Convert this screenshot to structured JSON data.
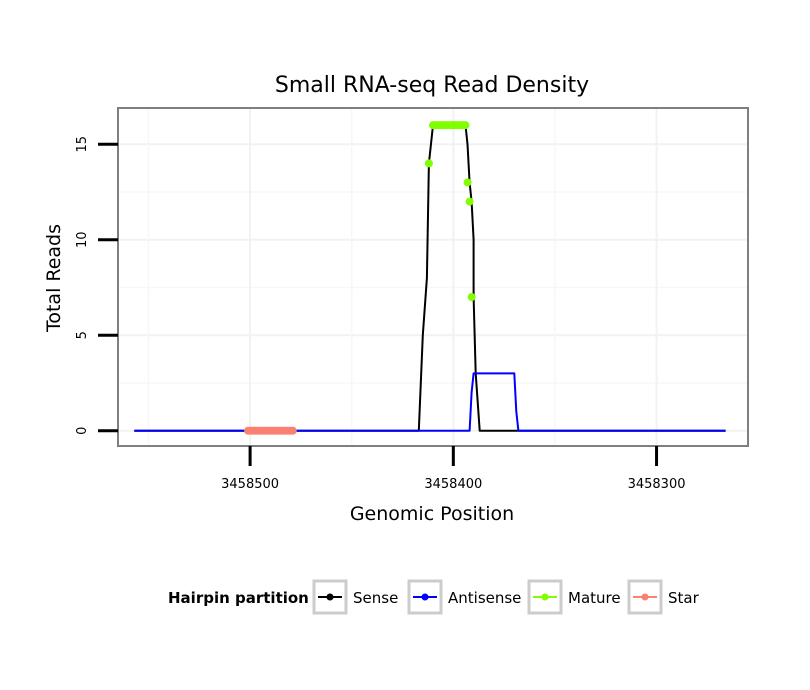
{
  "chart_data": {
    "type": "line",
    "title": "Small RNA-seq Read Density",
    "xlabel": "Genomic Position",
    "ylabel": "Total Reads",
    "x_reversed": true,
    "xlim": [
      3458565,
      3458255
    ],
    "ylim": [
      -0.8,
      16.9
    ],
    "x_ticks": [
      3458500,
      3458400,
      3458300
    ],
    "x_tick_labels": [
      "3458500",
      "3458400",
      "3458300"
    ],
    "y_ticks": [
      0,
      5,
      10,
      15
    ],
    "y_tick_labels": [
      "0",
      "5",
      "10",
      "15"
    ],
    "grid": true,
    "legend": {
      "title": "Hairpin partition",
      "position": "bottom",
      "entries": [
        "Sense",
        "Antisense",
        "Mature",
        "Star"
      ]
    },
    "series": [
      {
        "name": "Sense",
        "color": "#000000",
        "style": "line",
        "x": [
          3458557,
          3458417,
          3458415,
          3458413,
          3458412,
          3458410,
          3458408,
          3458395,
          3458394,
          3458393,
          3458392,
          3458391,
          3458390,
          3458390,
          3458389,
          3458387,
          3458266
        ],
        "y": [
          0,
          0,
          5,
          8,
          14,
          16,
          16,
          16,
          16,
          15,
          13,
          12,
          10,
          7,
          3,
          0,
          0
        ]
      },
      {
        "name": "Antisense",
        "color": "#0000ff",
        "style": "line",
        "x": [
          3458557,
          3458395,
          3458392,
          3458391,
          3458390,
          3458389,
          3458370,
          3458369,
          3458368,
          3458266
        ],
        "y": [
          0,
          0,
          0,
          2,
          3,
          3,
          3,
          1,
          0,
          0
        ]
      },
      {
        "name": "Mature",
        "color": "#7fff00",
        "style": "points",
        "x": [
          3458412,
          3458410,
          3458409,
          3458408,
          3458407,
          3458406,
          3458405,
          3458404,
          3458403,
          3458402,
          3458401,
          3458400,
          3458399,
          3458398,
          3458397,
          3458396,
          3458395,
          3458394,
          3458393,
          3458392,
          3458391
        ],
        "y": [
          14,
          16,
          16,
          16,
          16,
          16,
          16,
          16,
          16,
          16,
          16,
          16,
          16,
          16,
          16,
          16,
          16,
          16,
          13,
          12,
          7
        ]
      },
      {
        "name": "Star",
        "color": "#fa8072",
        "style": "points",
        "x": [
          3458501,
          3458500,
          3458499,
          3458498,
          3458497,
          3458496,
          3458495,
          3458494,
          3458493,
          3458492,
          3458491,
          3458490,
          3458489,
          3458488,
          3458487,
          3458486,
          3458485,
          3458484,
          3458483,
          3458482,
          3458481,
          3458480,
          3458479
        ],
        "y": [
          0,
          0,
          0,
          0,
          0,
          0,
          0,
          0,
          0,
          0,
          0,
          0,
          0,
          0,
          0,
          0,
          0,
          0,
          0,
          0,
          0,
          0,
          0
        ]
      }
    ]
  }
}
